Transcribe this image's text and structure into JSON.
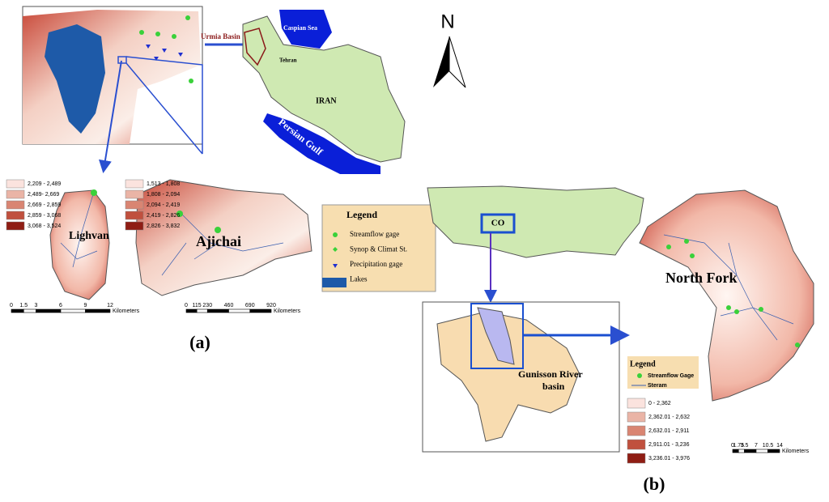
{
  "panel_a": {
    "urmia_map": {
      "label": "Urmia Basin"
    },
    "iran_map": {
      "caspian": "Caspian Sea",
      "capital": "Tehran",
      "country": "IRAN",
      "gulf": "Persian Gulf"
    },
    "north_arrow": "N",
    "lighvan": {
      "name": "Lighvan",
      "elevation_classes": [
        "2,209 - 2,489",
        "2,489- 2,669",
        "2,669 - 2,859",
        "2,859 - 3,068",
        "3,068 - 3,524"
      ],
      "scale_labels": [
        "0",
        "1.5",
        "3",
        "6",
        "9",
        "12"
      ],
      "scale_unit": "Kilometers"
    },
    "ajichai": {
      "name": "Ajichai",
      "elevation_classes": [
        "1,513 - 1,808",
        "1,808 - 2,094",
        "2,094 - 2,419",
        "2,419 - 2,826",
        "2,826 - 3,832"
      ],
      "scale_labels": [
        "0",
        "115",
        "230",
        "460",
        "690",
        "920"
      ],
      "scale_unit": "Kilometers"
    },
    "legend": {
      "title": "Legend",
      "items": [
        "Streamflow gage",
        "Synop & Climat St.",
        "Precipitation gage",
        "Lakes"
      ]
    },
    "caption": "(a)"
  },
  "panel_b": {
    "us_map": {
      "state": "CO"
    },
    "gunnison": {
      "name_line1": "Gunisson River",
      "name_line2": "basin"
    },
    "north_fork": {
      "name": "North Fork"
    },
    "legend": {
      "title": "Legend",
      "items": [
        "Streamflow Gage",
        "Steram"
      ]
    },
    "elevation_classes": [
      "0 - 2,362",
      "2,362.01 - 2,632",
      "2,632.01 - 2,911",
      "2,911.01 - 3,236",
      "3,236.01 - 3,976"
    ],
    "scale_labels": [
      "0",
      "1.75",
      "3.5",
      "7",
      "10.5",
      "14"
    ],
    "scale_unit": "Kilometers",
    "caption": "(b)"
  }
}
